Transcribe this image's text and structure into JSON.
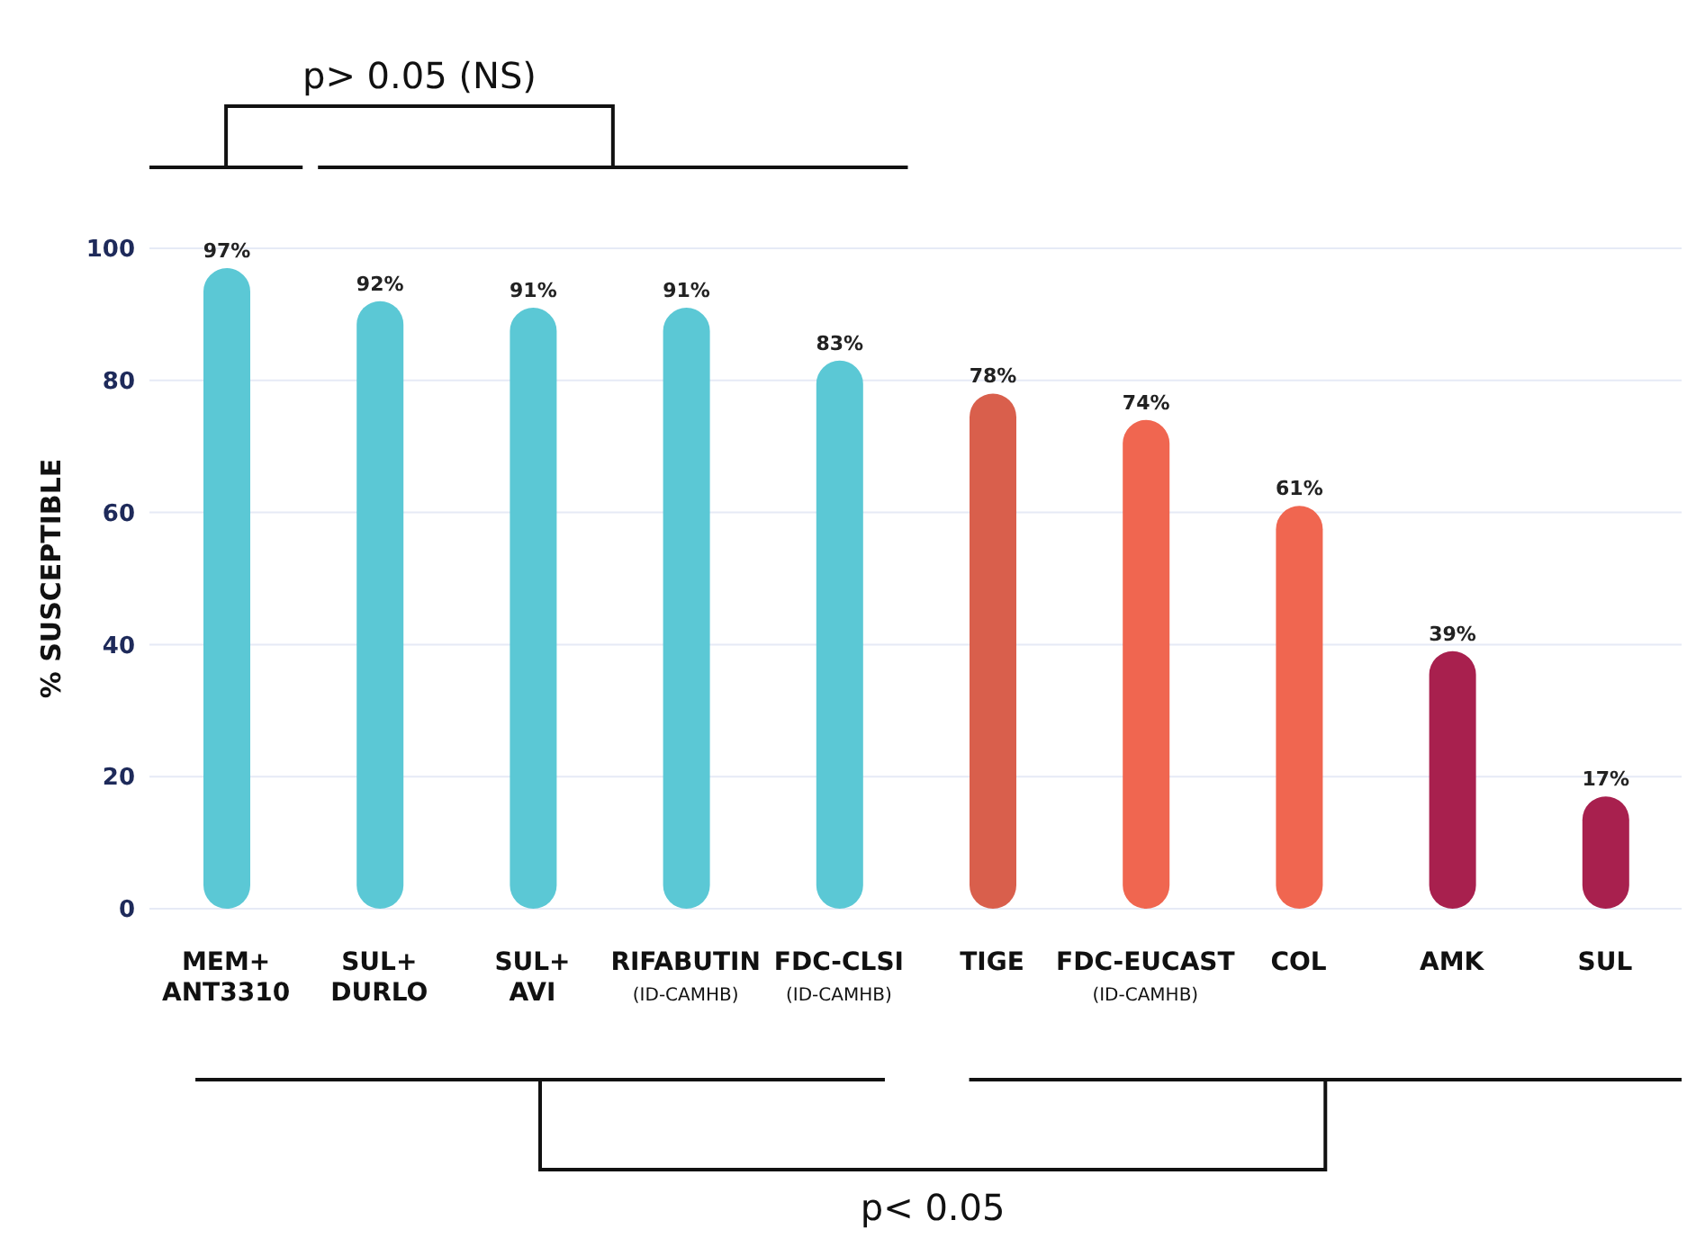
{
  "chart_data": {
    "type": "bar",
    "ylabel": "% SUSCEPTIBLE",
    "categories": [
      "MEM+\nANT3310",
      "SUL+\nDURLO",
      "SUL+\nAVI",
      "RIFABUTIN\n(ID-CAMHB)",
      "FDC-CLSI\n(ID-CAMHB)",
      "TIGE",
      "FDC-EUCAST\n(ID-CAMHB)",
      "COL",
      "AMK",
      "SUL"
    ],
    "values": [
      97,
      92,
      91,
      91,
      83,
      78,
      74,
      61,
      39,
      17
    ],
    "value_labels": [
      "97%",
      "92%",
      "91%",
      "91%",
      "83%",
      "78%",
      "74%",
      "61%",
      "39%",
      "17%"
    ],
    "colors": [
      "#5bc8d5",
      "#5bc8d5",
      "#5bc8d5",
      "#5bc8d5",
      "#5bc8d5",
      "#d95f4c",
      "#f06650",
      "#f06650",
      "#a8204e",
      "#a8204e"
    ],
    "ylim": [
      0,
      100
    ],
    "yticks": [
      0,
      20,
      40,
      60,
      80,
      100
    ],
    "grid": "y",
    "annotations": [
      "p> 0.05 (NS)",
      "p< 0.05"
    ]
  }
}
